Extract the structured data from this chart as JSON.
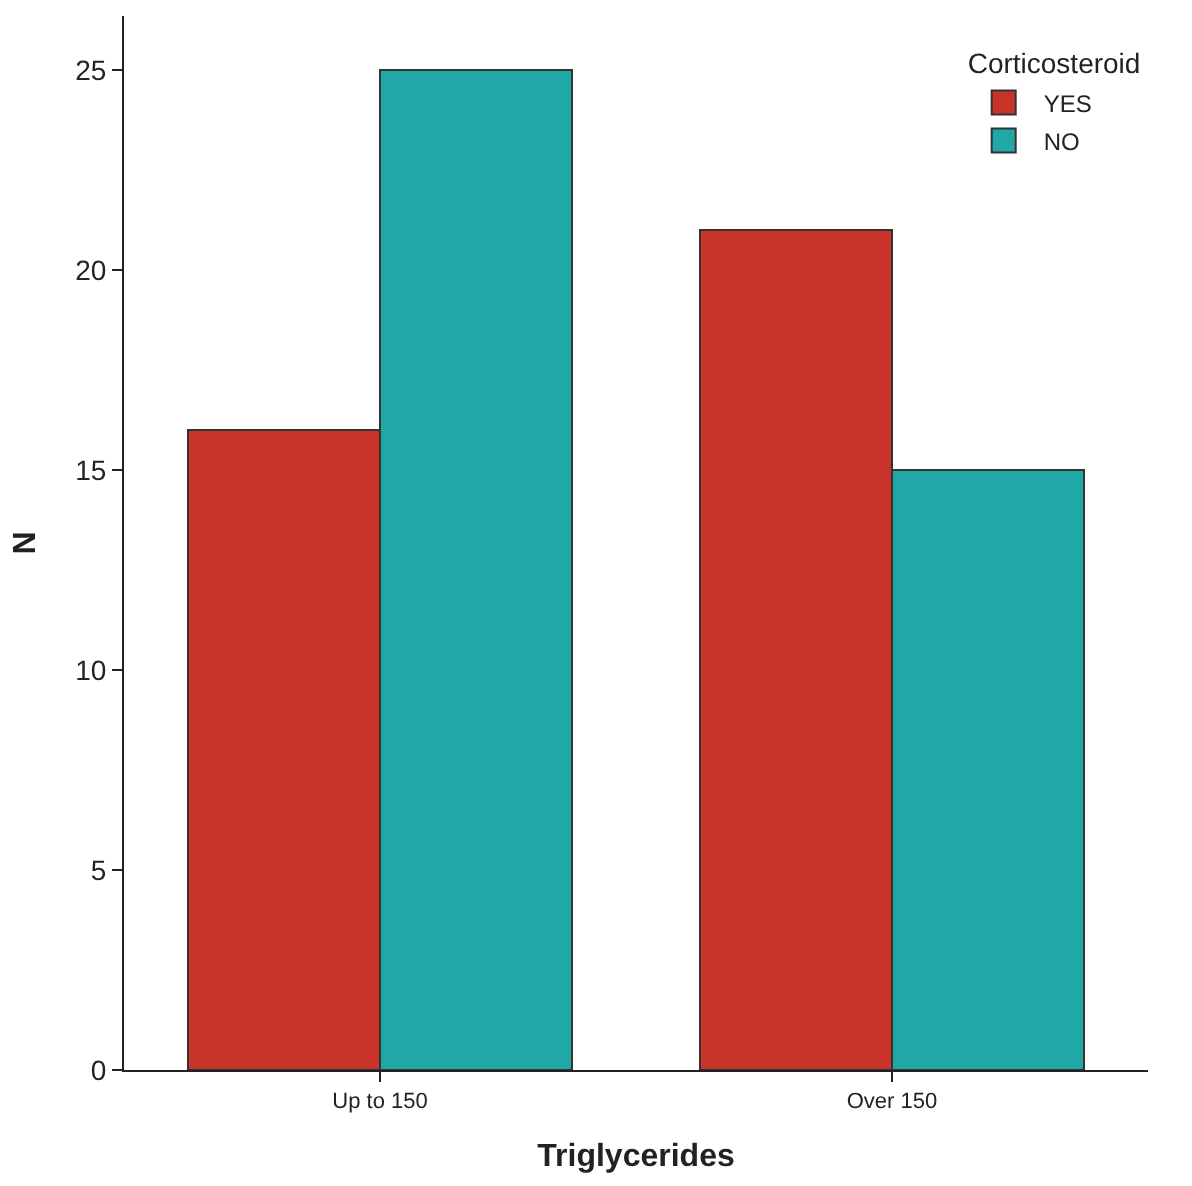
{
  "chart_data": {
    "type": "bar",
    "xlabel": "Triglycerides",
    "ylabel": "N",
    "legend_title": "Corticosteroid",
    "categories": [
      "Up to 150",
      "Over 150"
    ],
    "series": [
      {
        "name": "YES",
        "color": "#c8342a",
        "values": [
          16,
          21
        ]
      },
      {
        "name": "NO",
        "color": "#1fa8a5",
        "values": [
          25,
          15
        ]
      }
    ],
    "ylim": [
      0,
      26.35
    ],
    "yticks": [
      0,
      5,
      10,
      15,
      20,
      25
    ],
    "legend": "top right"
  }
}
